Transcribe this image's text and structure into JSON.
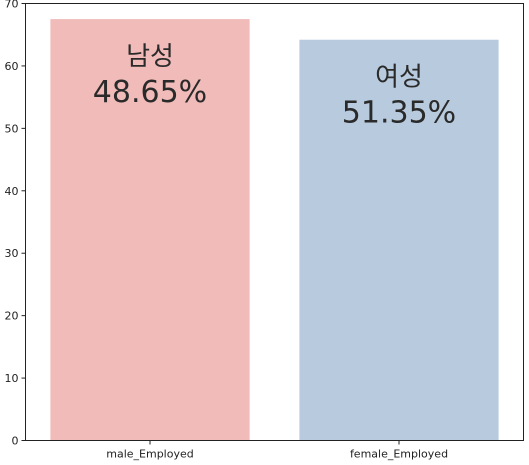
{
  "chart_data": {
    "type": "bar",
    "categories": [
      "male_Employed",
      "female_Employed"
    ],
    "values": [
      67.5,
      64.2
    ],
    "colors": [
      "#f0bbb8",
      "#b8cade"
    ],
    "annotations": [
      {
        "label": "남성",
        "percent": "48.65%"
      },
      {
        "label": "여성",
        "percent": "51.35%"
      }
    ],
    "ylim": [
      0,
      70
    ],
    "yticks": [
      0,
      10,
      20,
      30,
      40,
      50,
      60,
      70
    ],
    "grid": false,
    "xlabel": "",
    "ylabel": "",
    "title": ""
  }
}
